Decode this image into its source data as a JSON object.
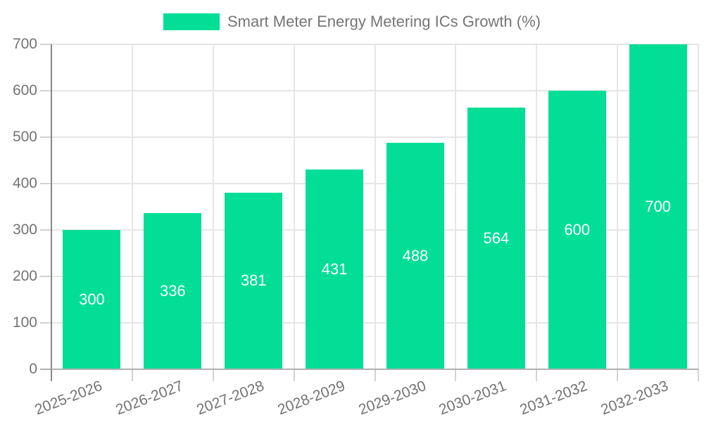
{
  "chart_data": {
    "type": "bar",
    "title": "Smart Meter Energy Metering ICs Growth (%)",
    "categories": [
      "2025-2026",
      "2026-2027",
      "2027-2028",
      "2028-2029",
      "2029-2030",
      "2030-2031",
      "2031-2032",
      "2032-2033"
    ],
    "values": [
      300,
      336,
      381,
      431,
      488,
      564,
      600,
      700
    ],
    "value_labels": [
      "300",
      "336",
      "381",
      "431",
      "488",
      "564",
      "600",
      "700"
    ],
    "xlabel": "",
    "ylabel": "",
    "ylim": [
      0,
      700
    ],
    "y_ticks": [
      0,
      100,
      200,
      300,
      400,
      500,
      600,
      700
    ],
    "grid": true,
    "legend_position": "top",
    "colors": {
      "bar": "#02DE96",
      "gridline": "#e6e6e6",
      "zero_line": "#b0b0b0",
      "y_axis_line": "#878787",
      "tick_mark": "#d2d2d2",
      "tick_text": "#737373",
      "legend_text": "#757575",
      "value_label_text": "#ffffff",
      "background": "#ffffff"
    }
  }
}
